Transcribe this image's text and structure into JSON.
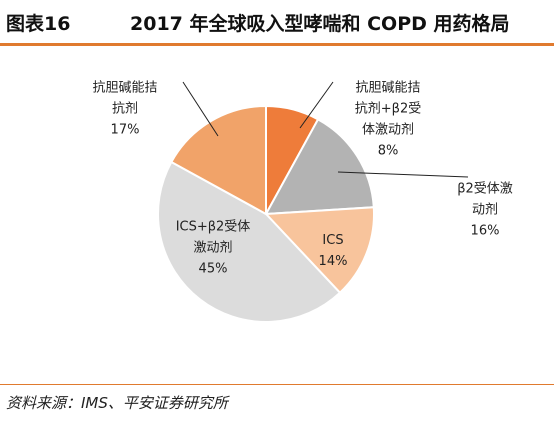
{
  "header": {
    "figure_label": "图表16",
    "title": "2017 年全球吸入型哮喘和 COPD 用药格局"
  },
  "source": "资料来源：IMS、平安证券研究所",
  "chart_data": {
    "type": "pie",
    "title": "2017 年全球吸入型哮喘和 COPD 用药格局",
    "unit": "%",
    "slices": [
      {
        "label_lines": [
          "抗胆碱能拮",
          "抗剂+β2受",
          "体激动剂"
        ],
        "value": 8,
        "value_label": "8%",
        "color": "#ee7c3a"
      },
      {
        "label_lines": [
          "β2受体激",
          "动剂"
        ],
        "value": 16,
        "value_label": "16%",
        "color": "#b3b3b3"
      },
      {
        "label_lines": [
          "ICS"
        ],
        "value": 14,
        "value_label": "14%",
        "color": "#f8c49c"
      },
      {
        "label_lines": [
          "ICS+β2受体",
          "激动剂"
        ],
        "value": 45,
        "value_label": "45%",
        "color": "#dcdcdc"
      },
      {
        "label_lines": [
          "抗胆碱能拮",
          "抗剂"
        ],
        "value": 17,
        "value_label": "17%",
        "color": "#f1a369"
      }
    ]
  }
}
